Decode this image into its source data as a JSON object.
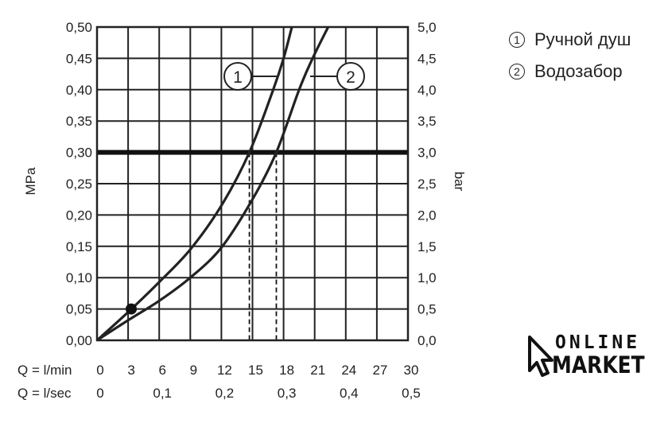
{
  "chart_data": {
    "type": "line",
    "left_axis": {
      "label": "MPa",
      "ylim": [
        0,
        0.5
      ],
      "ticks": [
        "0,00",
        "0,05",
        "0,10",
        "0,15",
        "0,20",
        "0,25",
        "0,30",
        "0,35",
        "0,40",
        "0,45",
        "0,50"
      ]
    },
    "right_axis": {
      "label": "bar",
      "ylim": [
        0,
        5
      ],
      "ticks": [
        "0,0",
        "0,5",
        "1,0",
        "1,5",
        "2,0",
        "2,5",
        "3,0",
        "3,5",
        "4,0",
        "4,5",
        "5,0"
      ]
    },
    "x_axis_primary": {
      "label": "Q = l/min",
      "xlim": [
        0,
        30
      ],
      "ticks": [
        "0",
        "3",
        "6",
        "9",
        "12",
        "15",
        "18",
        "21",
        "24",
        "27",
        "30"
      ]
    },
    "x_axis_secondary": {
      "label": "Q = l/sec",
      "ticks": [
        "0",
        "0,1",
        "0,2",
        "0,3",
        "0,4",
        "0,5"
      ]
    },
    "grid": true,
    "reference_line": {
      "y": 0.3
    },
    "reference_point": {
      "x": 3.3,
      "y": 0.05
    },
    "series": [
      {
        "id": "1",
        "name": "Ручной душ",
        "points": [
          [
            0,
            0
          ],
          [
            3,
            0.045
          ],
          [
            6,
            0.093
          ],
          [
            9,
            0.145
          ],
          [
            12,
            0.215
          ],
          [
            14.7,
            0.3
          ],
          [
            17,
            0.4
          ],
          [
            18,
            0.45
          ],
          [
            18.8,
            0.5
          ]
        ]
      },
      {
        "id": "2",
        "name": "Водозабор",
        "points": [
          [
            0,
            0
          ],
          [
            3,
            0.032
          ],
          [
            6,
            0.063
          ],
          [
            9,
            0.1
          ],
          [
            12,
            0.148
          ],
          [
            15,
            0.225
          ],
          [
            17.3,
            0.3
          ],
          [
            19.5,
            0.4
          ],
          [
            20.8,
            0.45
          ],
          [
            22.3,
            0.5
          ]
        ]
      }
    ],
    "dropdowns": [
      {
        "series": "1",
        "x": 14.7,
        "y": 0.3
      },
      {
        "series": "2",
        "x": 17.3,
        "y": 0.3
      }
    ]
  },
  "legend": {
    "items": [
      {
        "num": "1",
        "label": "Ручной душ"
      },
      {
        "num": "2",
        "label": "Водозабор"
      }
    ]
  },
  "logo": {
    "top": "ONLINE",
    "bottom": "MARKET"
  }
}
